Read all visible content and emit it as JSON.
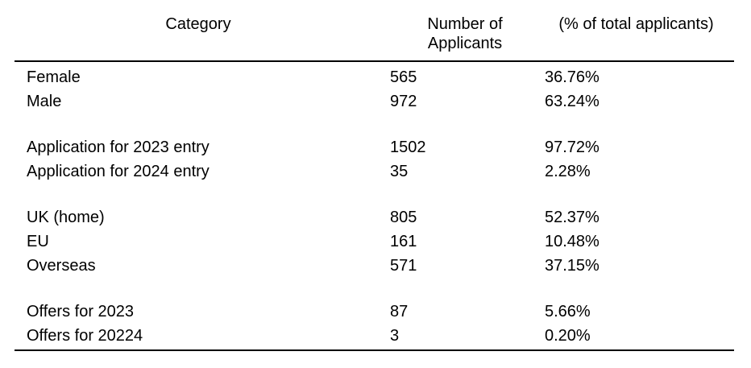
{
  "table": {
    "headers": {
      "category": "Category",
      "number_line1": "Number of",
      "number_line2": "Applicants",
      "percent": "(% of total applicants)"
    },
    "groups": [
      {
        "rows": [
          {
            "category": "Female",
            "number": "565",
            "percent": "36.76%"
          },
          {
            "category": "Male",
            "number": "972",
            "percent": "63.24%"
          }
        ]
      },
      {
        "rows": [
          {
            "category": "Application for 2023 entry",
            "number": "1502",
            "percent": "97.72%"
          },
          {
            "category": "Application for 2024 entry",
            "number": "35",
            "percent": "2.28%"
          }
        ]
      },
      {
        "rows": [
          {
            "category": "UK (home)",
            "number": "805",
            "percent": "52.37%"
          },
          {
            "category": "EU",
            "number": "161",
            "percent": "10.48%"
          },
          {
            "category": "Overseas",
            "number": "571",
            "percent": "37.15%"
          }
        ]
      },
      {
        "rows": [
          {
            "category": "Offers for 2023",
            "number": "87",
            "percent": "5.66%"
          },
          {
            "category": "Offers for 20224",
            "number": "3",
            "percent": "0.20%"
          }
        ]
      }
    ]
  }
}
